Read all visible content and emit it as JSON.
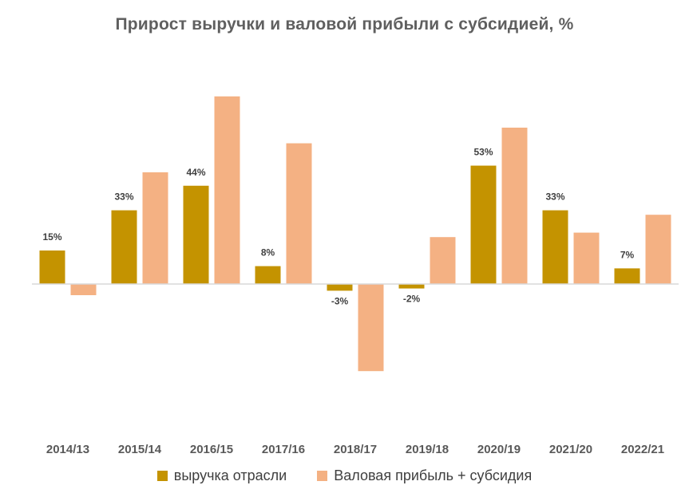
{
  "chart_data": {
    "type": "bar",
    "title": "Прирост выручки и валовой прибыли с субсидией, %",
    "xlabel": "",
    "ylabel": "",
    "categories": [
      "2014/13",
      "2015/14",
      "2016/15",
      "2017/16",
      "2018/17",
      "2019/18",
      "2020/19",
      "2021/20",
      "2022/21"
    ],
    "series": [
      {
        "name": "выручка отрасли",
        "color": "#C49300",
        "values": [
          15,
          33,
          44,
          8,
          -3,
          -2,
          53,
          33,
          7
        ],
        "labels": [
          "15%",
          "33%",
          "44%",
          "8%",
          "-3%",
          "-2%",
          "53%",
          "33%",
          "7%"
        ]
      },
      {
        "name": "Валовая прибыль + субсидия",
        "color": "#F4B183",
        "values": [
          -5,
          50,
          84,
          63,
          -39,
          21,
          70,
          23,
          31
        ]
      }
    ],
    "ylim": [
      -70,
      90
    ],
    "grid": false,
    "legend_position": "bottom",
    "axis_color": "#D9D9D9"
  }
}
